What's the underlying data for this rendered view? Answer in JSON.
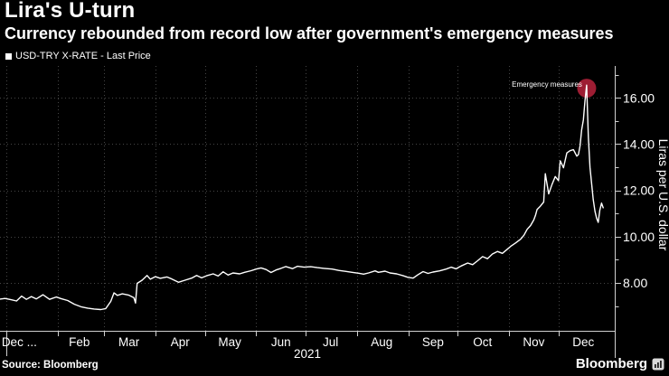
{
  "header": {
    "title": "Lira's U-turn",
    "subtitle": "Currency rebounded from record low after government's emergency measures"
  },
  "legend": {
    "label": "USD-TRY X-RATE - Last Price"
  },
  "footer": {
    "source": "Source: Bloomberg",
    "brand": "Bloomberg"
  },
  "colors": {
    "background": "#000000",
    "text": "#ffffff",
    "line": "#ffffff",
    "grid": "#454545",
    "axis": "#cfcfcf",
    "marker": "#9d1d33"
  },
  "chart_data": {
    "type": "line",
    "title": "Lira's U-turn",
    "series_name": "USD-TRY X-RATE - Last Price",
    "x_domain": [
      "2020-12-28",
      "2022-01-04"
    ],
    "ylim": [
      5.93,
      17.38
    ],
    "y_axis": {
      "title": "Liras per U.S. dollar",
      "major": [
        {
          "value": 8,
          "label": "8.00"
        },
        {
          "value": 10,
          "label": "10.00"
        },
        {
          "value": 12,
          "label": "12.00"
        },
        {
          "value": 14,
          "label": "14.00"
        },
        {
          "value": 16,
          "label": "16.00"
        }
      ],
      "minor": [
        7,
        9,
        11,
        13,
        15,
        17
      ]
    },
    "x_axis": {
      "year": "2021",
      "ticks": [
        "2021-01-01",
        "2021-02-01",
        "2021-03-01",
        "2021-04-01",
        "2021-05-01",
        "2021-06-01",
        "2021-07-01",
        "2021-08-01",
        "2021-09-01",
        "2021-10-01",
        "2021-11-01",
        "2021-12-01"
      ],
      "labels": [
        {
          "text": "Dec ...",
          "center": "2020-12-29",
          "anchor": "start"
        },
        {
          "text": "Feb",
          "center": "2021-02-14"
        },
        {
          "text": "Mar",
          "center": "2021-03-16"
        },
        {
          "text": "Apr",
          "center": "2021-04-16"
        },
        {
          "text": "May",
          "center": "2021-05-16"
        },
        {
          "text": "Jun",
          "center": "2021-06-16"
        },
        {
          "text": "Jul",
          "center": "2021-07-16"
        },
        {
          "text": "Aug",
          "center": "2021-08-16"
        },
        {
          "text": "Sep",
          "center": "2021-09-16"
        },
        {
          "text": "Oct",
          "center": "2021-10-16"
        },
        {
          "text": "Nov",
          "center": "2021-11-16"
        },
        {
          "text": "Dec",
          "center": "2021-12-16"
        }
      ]
    },
    "annotation": {
      "text": "Emergency measures",
      "date": "2021-12-18",
      "value": 16.42
    },
    "points": [
      [
        "2020-12-28",
        7.3
      ],
      [
        "2020-12-31",
        7.33
      ],
      [
        "2021-01-04",
        7.27
      ],
      [
        "2021-01-07",
        7.22
      ],
      [
        "2021-01-10",
        7.43
      ],
      [
        "2021-01-13",
        7.29
      ],
      [
        "2021-01-16",
        7.41
      ],
      [
        "2021-01-19",
        7.31
      ],
      [
        "2021-01-23",
        7.49
      ],
      [
        "2021-01-27",
        7.29
      ],
      [
        "2021-01-31",
        7.39
      ],
      [
        "2021-02-03",
        7.32
      ],
      [
        "2021-02-07",
        7.24
      ],
      [
        "2021-02-11",
        7.08
      ],
      [
        "2021-02-15",
        6.97
      ],
      [
        "2021-02-19",
        6.91
      ],
      [
        "2021-02-23",
        6.87
      ],
      [
        "2021-02-27",
        6.85
      ],
      [
        "2021-03-02",
        6.89
      ],
      [
        "2021-03-05",
        7.2
      ],
      [
        "2021-03-07",
        7.57
      ],
      [
        "2021-03-09",
        7.46
      ],
      [
        "2021-03-12",
        7.53
      ],
      [
        "2021-03-16",
        7.47
      ],
      [
        "2021-03-19",
        7.36
      ],
      [
        "2021-03-20",
        7.13
      ],
      [
        "2021-03-21",
        7.98
      ],
      [
        "2021-03-24",
        8.12
      ],
      [
        "2021-03-27",
        8.32
      ],
      [
        "2021-03-29",
        8.16
      ],
      [
        "2021-04-01",
        8.27
      ],
      [
        "2021-04-04",
        8.2
      ],
      [
        "2021-04-08",
        8.26
      ],
      [
        "2021-04-11",
        8.17
      ],
      [
        "2021-04-15",
        8.03
      ],
      [
        "2021-04-19",
        8.12
      ],
      [
        "2021-04-23",
        8.21
      ],
      [
        "2021-04-26",
        8.32
      ],
      [
        "2021-04-29",
        8.22
      ],
      [
        "2021-05-02",
        8.31
      ],
      [
        "2021-05-06",
        8.39
      ],
      [
        "2021-05-09",
        8.3
      ],
      [
        "2021-05-12",
        8.48
      ],
      [
        "2021-05-15",
        8.34
      ],
      [
        "2021-05-18",
        8.43
      ],
      [
        "2021-05-22",
        8.39
      ],
      [
        "2021-05-25",
        8.46
      ],
      [
        "2021-05-29",
        8.53
      ],
      [
        "2021-06-01",
        8.6
      ],
      [
        "2021-06-04",
        8.65
      ],
      [
        "2021-06-07",
        8.58
      ],
      [
        "2021-06-10",
        8.45
      ],
      [
        "2021-06-13",
        8.56
      ],
      [
        "2021-06-16",
        8.63
      ],
      [
        "2021-06-19",
        8.71
      ],
      [
        "2021-06-23",
        8.62
      ],
      [
        "2021-06-26",
        8.72
      ],
      [
        "2021-06-30",
        8.68
      ],
      [
        "2021-07-04",
        8.7
      ],
      [
        "2021-07-08",
        8.66
      ],
      [
        "2021-07-12",
        8.63
      ],
      [
        "2021-07-17",
        8.6
      ],
      [
        "2021-07-21",
        8.54
      ],
      [
        "2021-07-25",
        8.5
      ],
      [
        "2021-07-29",
        8.46
      ],
      [
        "2021-08-02",
        8.42
      ],
      [
        "2021-08-05",
        8.38
      ],
      [
        "2021-08-08",
        8.43
      ],
      [
        "2021-08-12",
        8.52
      ],
      [
        "2021-08-14",
        8.46
      ],
      [
        "2021-08-18",
        8.51
      ],
      [
        "2021-08-21",
        8.43
      ],
      [
        "2021-08-25",
        8.39
      ],
      [
        "2021-08-29",
        8.31
      ],
      [
        "2021-09-01",
        8.24
      ],
      [
        "2021-09-04",
        8.21
      ],
      [
        "2021-09-07",
        8.36
      ],
      [
        "2021-09-10",
        8.49
      ],
      [
        "2021-09-13",
        8.41
      ],
      [
        "2021-09-16",
        8.47
      ],
      [
        "2021-09-20",
        8.52
      ],
      [
        "2021-09-24",
        8.6
      ],
      [
        "2021-09-27",
        8.68
      ],
      [
        "2021-09-30",
        8.61
      ],
      [
        "2021-10-03",
        8.73
      ],
      [
        "2021-10-07",
        8.86
      ],
      [
        "2021-10-10",
        8.79
      ],
      [
        "2021-10-13",
        8.96
      ],
      [
        "2021-10-16",
        9.14
      ],
      [
        "2021-10-19",
        9.05
      ],
      [
        "2021-10-22",
        9.25
      ],
      [
        "2021-10-25",
        9.36
      ],
      [
        "2021-10-28",
        9.28
      ],
      [
        "2021-10-31",
        9.46
      ],
      [
        "2021-11-02",
        9.58
      ],
      [
        "2021-11-05",
        9.73
      ],
      [
        "2021-11-08",
        9.89
      ],
      [
        "2021-11-10",
        10.06
      ],
      [
        "2021-11-12",
        10.32
      ],
      [
        "2021-11-14",
        10.48
      ],
      [
        "2021-11-16",
        10.72
      ],
      [
        "2021-11-17",
        10.92
      ],
      [
        "2021-11-18",
        11.18
      ],
      [
        "2021-11-20",
        11.32
      ],
      [
        "2021-11-22",
        11.5
      ],
      [
        "2021-11-23",
        12.72
      ],
      [
        "2021-11-25",
        11.85
      ],
      [
        "2021-11-27",
        12.25
      ],
      [
        "2021-11-29",
        12.6
      ],
      [
        "2021-12-01",
        12.42
      ],
      [
        "2021-12-02",
        13.28
      ],
      [
        "2021-12-04",
        12.98
      ],
      [
        "2021-12-06",
        13.62
      ],
      [
        "2021-12-08",
        13.72
      ],
      [
        "2021-12-10",
        13.76
      ],
      [
        "2021-12-12",
        13.48
      ],
      [
        "2021-12-13",
        13.55
      ],
      [
        "2021-12-14",
        13.92
      ],
      [
        "2021-12-15",
        14.62
      ],
      [
        "2021-12-16",
        15.05
      ],
      [
        "2021-12-17",
        15.9
      ],
      [
        "2021-12-18",
        16.55
      ],
      [
        "2021-12-19",
        14.3
      ],
      [
        "2021-12-20",
        13.0
      ],
      [
        "2021-12-21",
        12.3
      ],
      [
        "2021-12-22",
        11.6
      ],
      [
        "2021-12-23",
        11.1
      ],
      [
        "2021-12-24",
        10.8
      ],
      [
        "2021-12-25",
        10.62
      ],
      [
        "2021-12-26",
        11.15
      ],
      [
        "2021-12-27",
        11.45
      ],
      [
        "2021-12-28",
        11.25
      ]
    ]
  }
}
